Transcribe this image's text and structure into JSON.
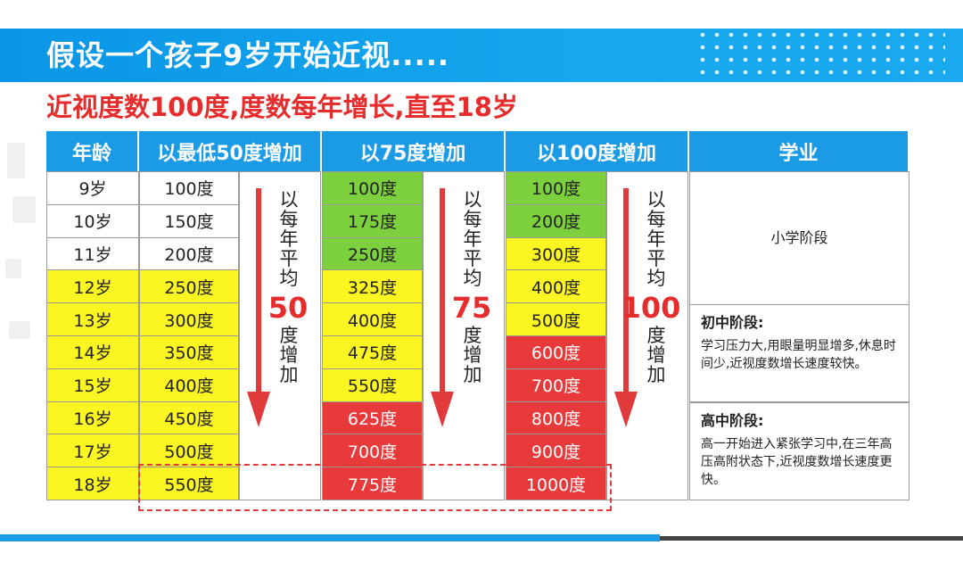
{
  "title": "假设一个孩子9岁开始近视.....",
  "subtitle": "近视度数100度,度数每年增长,直至18岁",
  "table": {
    "headers": [
      "年龄",
      "以最低50度增加",
      "以75度增加",
      "以100度增加",
      "学业"
    ],
    "rows": [
      {
        "age": "9岁",
        "d50": "100度",
        "d75": "100度",
        "d100": "100度"
      },
      {
        "age": "10岁",
        "d50": "150度",
        "d75": "175度",
        "d100": "200度"
      },
      {
        "age": "11岁",
        "d50": "200度",
        "d75": "250度",
        "d100": "300度"
      },
      {
        "age": "12岁",
        "d50": "250度",
        "d75": "325度",
        "d100": "400度"
      },
      {
        "age": "13岁",
        "d50": "300度",
        "d75": "400度",
        "d100": "500度"
      },
      {
        "age": "14岁",
        "d50": "350度",
        "d75": "475度",
        "d100": "600度"
      },
      {
        "age": "15岁",
        "d50": "400度",
        "d75": "550度",
        "d100": "700度"
      },
      {
        "age": "16岁",
        "d50": "450度",
        "d75": "625度",
        "d100": "800度"
      },
      {
        "age": "17岁",
        "d50": "500度",
        "d75": "700度",
        "d100": "900度"
      },
      {
        "age": "18岁",
        "d50": "550度",
        "d75": "775度",
        "d100": "1000度"
      }
    ],
    "arrows": [
      {
        "top_text": "以每年平均",
        "number": "50",
        "bottom_text": "度增加"
      },
      {
        "top_text": "以每年平均",
        "number": "75",
        "bottom_text": "度增加"
      },
      {
        "top_text": "以每年平均",
        "number": "100",
        "bottom_text": "度增加"
      }
    ],
    "stages": {
      "primary": "小学阶段",
      "middle_title": "初中阶段:",
      "middle_body": "学习压力大,用眼量明显增多,休息时间少,近视度数增长速度较快。",
      "high_title": "高中阶段:",
      "high_body": "高一开始进入紧张学习中,在三年高压高附状态下,近视度数增长速度更快。"
    }
  },
  "colors": {
    "header_blue": "#1b9be6",
    "banner_blue": "#0a96e6",
    "yellow": "#fbf522",
    "green": "#7ccf3d",
    "red": "#e83a3a",
    "accent_red": "#e52d2d"
  }
}
